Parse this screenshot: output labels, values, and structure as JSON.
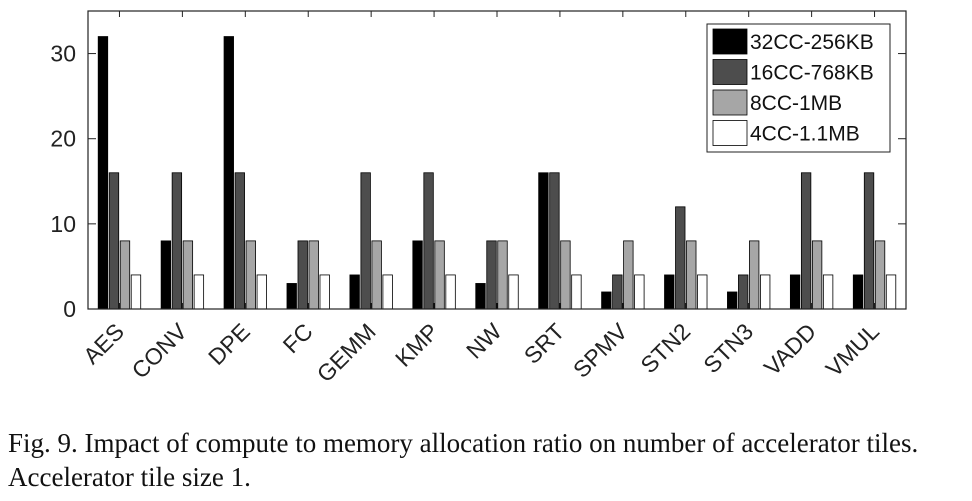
{
  "chart_data": {
    "type": "bar",
    "title": "",
    "xlabel": "",
    "ylabel": "",
    "ylim": [
      0,
      35
    ],
    "yticks": [
      0,
      10,
      20,
      30
    ],
    "grid": false,
    "legend_position": "top-right",
    "categories": [
      "AES",
      "CONV",
      "DPE",
      "FC",
      "GEMM",
      "KMP",
      "NW",
      "SRT",
      "SPMV",
      "STN2",
      "STN3",
      "VADD",
      "VMUL"
    ],
    "series": [
      {
        "name": "32CC-256KB",
        "color": "#000000",
        "values": [
          32,
          8,
          32,
          3,
          4,
          8,
          3,
          16,
          2,
          4,
          2,
          4,
          4
        ]
      },
      {
        "name": "16CC-768KB",
        "color": "#4d4d4d",
        "values": [
          16,
          16,
          16,
          8,
          16,
          16,
          8,
          16,
          4,
          12,
          4,
          16,
          16
        ]
      },
      {
        "name": "8CC-1MB",
        "color": "#a6a6a6",
        "values": [
          8,
          8,
          8,
          8,
          8,
          8,
          8,
          8,
          8,
          8,
          8,
          8,
          8
        ]
      },
      {
        "name": "4CC-1.1MB",
        "color": "#ffffff",
        "values": [
          4,
          4,
          4,
          4,
          4,
          4,
          4,
          4,
          4,
          4,
          4,
          4,
          4
        ]
      }
    ]
  },
  "caption": "Fig. 9.  Impact of compute to memory allocation ratio on number of accelerator tiles. Accelerator tile size 1."
}
